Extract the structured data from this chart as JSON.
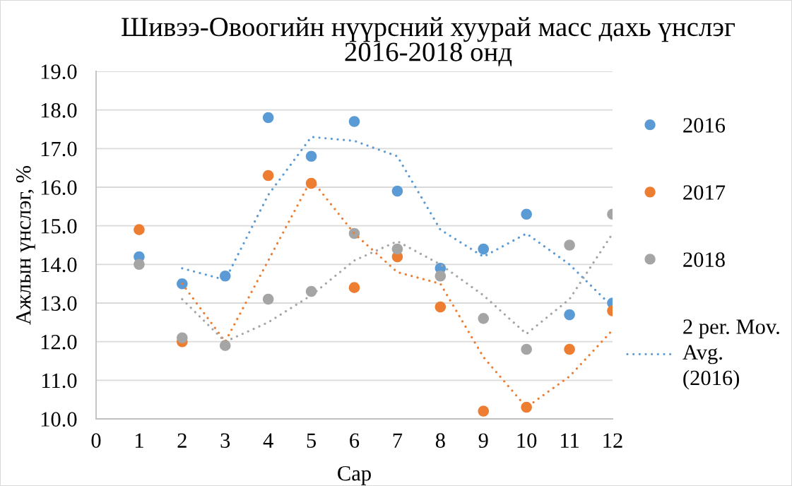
{
  "chart_data": {
    "type": "scatter",
    "title": "Шивээ-Овоогийн нүүрсний хуурай масс дахь үнслэг\n2016-2018 онд",
    "xlabel": "Сар",
    "ylabel": "Ажлын үнслэг, %",
    "x": [
      1,
      2,
      3,
      4,
      5,
      6,
      7,
      8,
      9,
      10,
      11,
      12
    ],
    "xlim": [
      0,
      12
    ],
    "xticks": [
      0,
      1,
      2,
      3,
      4,
      5,
      6,
      7,
      8,
      9,
      10,
      11,
      12
    ],
    "ylim": [
      10,
      19
    ],
    "yticks": [
      {
        "value": 10,
        "label": "10.0"
      },
      {
        "value": 11,
        "label": "11.0"
      },
      {
        "value": 12,
        "label": "12.0"
      },
      {
        "value": 13,
        "label": "13.0"
      },
      {
        "value": 14,
        "label": "14.0"
      },
      {
        "value": 15,
        "label": "15.0"
      },
      {
        "value": 16,
        "label": "16.0"
      },
      {
        "value": 17,
        "label": "17.0"
      },
      {
        "value": 18,
        "label": "18.0"
      },
      {
        "value": 19,
        "label": "19.0"
      }
    ],
    "grid": "y",
    "legend": "right",
    "series": [
      {
        "name": "2016",
        "marker": "circle",
        "color": "#5b9bd5",
        "values": [
          14.2,
          13.5,
          13.7,
          17.8,
          16.8,
          17.7,
          15.9,
          13.9,
          14.4,
          15.3,
          12.7,
          13.0
        ]
      },
      {
        "name": "2017",
        "marker": "circle",
        "color": "#ed7d31",
        "values": [
          14.9,
          12.0,
          null,
          16.3,
          16.1,
          13.4,
          14.2,
          12.9,
          10.2,
          10.3,
          11.8,
          12.8
        ]
      },
      {
        "name": "2018",
        "marker": "circle",
        "color": "#a5a5a5",
        "values": [
          14.0,
          12.1,
          11.9,
          13.1,
          13.3,
          14.8,
          14.4,
          13.7,
          12.6,
          11.8,
          14.5,
          15.3
        ]
      },
      {
        "name": "2 per. Mov. Avg. (2016)",
        "type": "line",
        "line_style": "dotted",
        "color": "#5b9bd5",
        "x": [
          2,
          3,
          4,
          5,
          6,
          7,
          8,
          9,
          10,
          11,
          12
        ],
        "values": [
          13.9,
          13.6,
          15.8,
          17.3,
          17.2,
          16.8,
          14.9,
          14.2,
          14.8,
          14.0,
          12.9
        ]
      },
      {
        "type": "line",
        "line_style": "dotted",
        "color": "#ed7d31",
        "x": [
          2,
          3,
          4,
          5,
          6,
          7,
          8,
          9,
          10,
          11,
          12
        ],
        "values": [
          13.5,
          12.0,
          14.1,
          16.2,
          14.8,
          13.8,
          13.5,
          11.6,
          10.3,
          11.1,
          12.3
        ]
      },
      {
        "type": "line",
        "line_style": "dotted",
        "color": "#a5a5a5",
        "x": [
          2,
          3,
          4,
          5,
          6,
          7,
          8,
          9,
          10,
          11,
          12
        ],
        "values": [
          13.1,
          12.0,
          12.5,
          13.2,
          14.1,
          14.6,
          14.0,
          13.2,
          12.2,
          13.1,
          14.8
        ]
      }
    ]
  }
}
